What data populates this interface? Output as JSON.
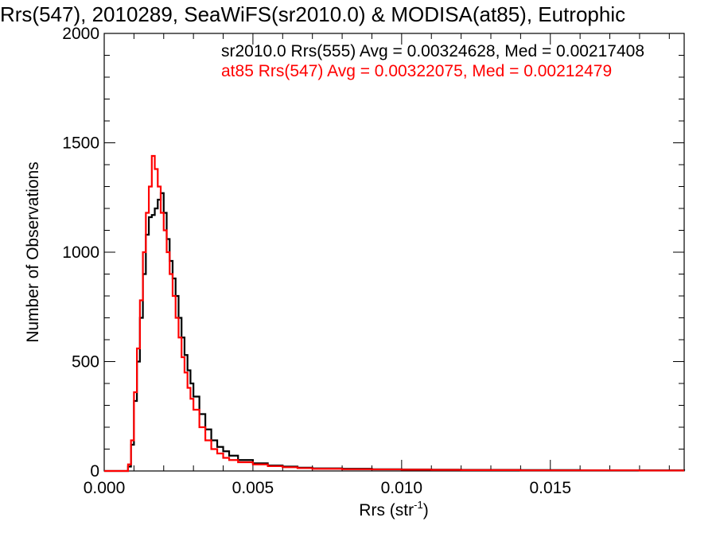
{
  "chart_data": {
    "type": "line",
    "title": "Rrs(547), 2010289, SeaWiFS(sr2010.0) & MODISA(at85), Eutrophic",
    "xlabel_main": "Rrs (str",
    "xlabel_sup": "-1",
    "xlabel_close": ")",
    "ylabel": "Number of Observations",
    "xlim": [
      0.0,
      0.0195
    ],
    "ylim": [
      0,
      2000
    ],
    "x_ticks": [
      0.0,
      0.005,
      0.01,
      0.015
    ],
    "x_tick_labels": [
      "0.000",
      "0.005",
      "0.010",
      "0.015"
    ],
    "y_ticks": [
      0,
      500,
      1000,
      1500,
      2000
    ],
    "y_tick_labels": [
      "0",
      "500",
      "1000",
      "1500",
      "2000"
    ],
    "annotations": [
      "sr2010.0 Rrs(555) Avg = 0.00324628, Med = 0.00217408",
      "at85 Rrs(547) Avg = 0.00322075, Med = 0.00212479"
    ],
    "series": [
      {
        "color": "#000000",
        "x": [
          0.0,
          0.0008,
          0.0009,
          0.001,
          0.0011,
          0.0012,
          0.0013,
          0.0014,
          0.0015,
          0.0016,
          0.0017,
          0.0018,
          0.0019,
          0.002,
          0.0021,
          0.0022,
          0.0023,
          0.0024,
          0.0025,
          0.0026,
          0.0027,
          0.0028,
          0.0029,
          0.003,
          0.0032,
          0.0034,
          0.0036,
          0.0038,
          0.004,
          0.0042,
          0.0045,
          0.005,
          0.0055,
          0.006,
          0.0065,
          0.007,
          0.008,
          0.009,
          0.01,
          0.011,
          0.012,
          0.014,
          0.016,
          0.018,
          0.0195
        ],
        "y": [
          0,
          20,
          120,
          320,
          500,
          700,
          900,
          1080,
          1160,
          1170,
          1200,
          1240,
          1270,
          1180,
          1060,
          960,
          880,
          800,
          700,
          610,
          530,
          460,
          400,
          340,
          260,
          190,
          140,
          110,
          90,
          70,
          50,
          35,
          25,
          20,
          15,
          12,
          10,
          8,
          7,
          6,
          5,
          4,
          3,
          3,
          2
        ]
      },
      {
        "color": "#ff0000",
        "x": [
          0.0,
          0.0008,
          0.0009,
          0.001,
          0.0011,
          0.0012,
          0.0013,
          0.0014,
          0.0015,
          0.0016,
          0.0017,
          0.0018,
          0.0019,
          0.002,
          0.0021,
          0.0022,
          0.0023,
          0.0024,
          0.0025,
          0.0026,
          0.0027,
          0.0028,
          0.0029,
          0.003,
          0.0032,
          0.0034,
          0.0036,
          0.0038,
          0.004,
          0.0042,
          0.0045,
          0.005,
          0.0055,
          0.006,
          0.0065,
          0.007,
          0.008,
          0.009,
          0.01,
          0.011,
          0.012,
          0.014,
          0.016,
          0.018,
          0.0195
        ],
        "y": [
          0,
          30,
          140,
          360,
          560,
          780,
          1000,
          1180,
          1300,
          1440,
          1380,
          1300,
          1180,
          1100,
          1000,
          900,
          800,
          700,
          610,
          520,
          450,
          380,
          330,
          280,
          200,
          140,
          100,
          80,
          60,
          50,
          40,
          30,
          22,
          17,
          13,
          10,
          8,
          7,
          6,
          5,
          4,
          3,
          3,
          2,
          2
        ]
      }
    ]
  }
}
